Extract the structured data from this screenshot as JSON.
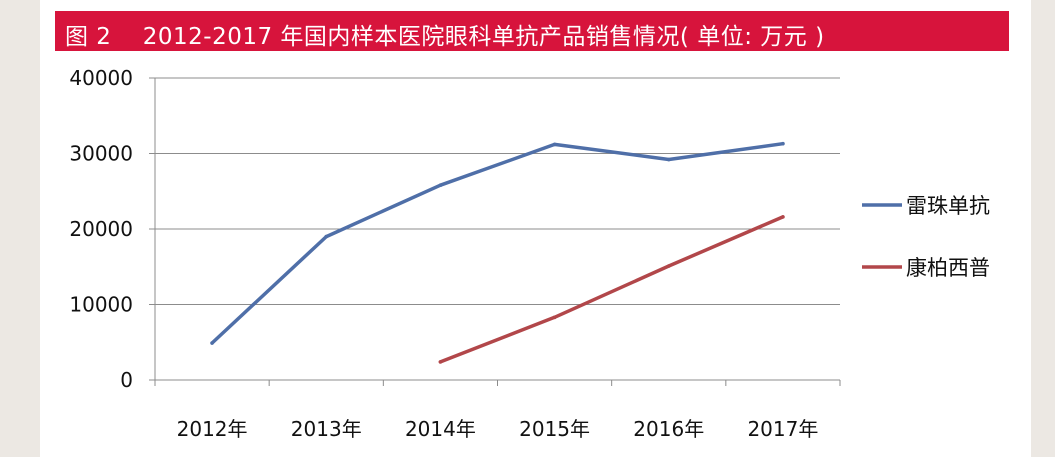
{
  "title": "图 2　 2012-2017 年国内样本医院眼科单抗产品销售情况( 单位: 万元 )",
  "chart_data": {
    "type": "line",
    "title": "图 2　 2012-2017 年国内样本医院眼科单抗产品销售情况( 单位: 万元 )",
    "categories": [
      "2012年",
      "2013年",
      "2014年",
      "2015年",
      "2016年",
      "2017年"
    ],
    "ylim": [
      0,
      40000
    ],
    "yticks": [
      "0",
      "10000",
      "20000",
      "30000",
      "40000"
    ],
    "grid": true,
    "legend_position": "right",
    "series": [
      {
        "name": "雷珠单抗",
        "color": "#4f6fa8",
        "values": [
          4900,
          19000,
          25800,
          31200,
          29200,
          31300
        ]
      },
      {
        "name": "康柏西普",
        "color": "#b2474a",
        "values": [
          null,
          null,
          2400,
          8300,
          15100,
          21600
        ]
      }
    ]
  }
}
